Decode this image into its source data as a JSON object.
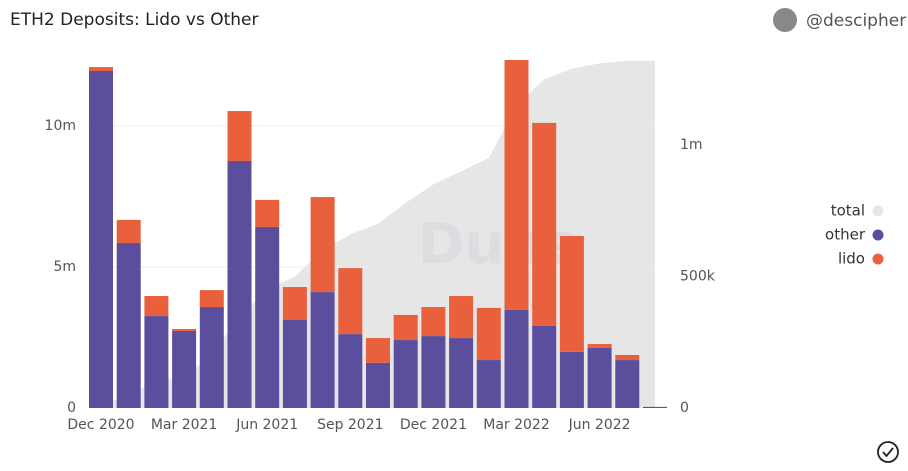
{
  "chart_data": {
    "type": "bar",
    "title": "ETH2 Deposits: Lido vs Other",
    "author": "@descipher",
    "watermark": "Dune",
    "stacked": true,
    "categories": [
      "Dec 2020",
      null,
      null,
      "Mar 2021",
      null,
      null,
      "Jun 2021",
      null,
      null,
      "Sep 2021",
      null,
      null,
      "Dec 2021",
      null,
      null,
      "Mar 2022",
      null,
      null,
      "Jun 2022",
      null,
      null
    ],
    "series": [
      {
        "name": "total",
        "color": "#e6e6e6",
        "type": "area",
        "axis": "y2",
        "values": [
          10000,
          50000,
          100000,
          120000,
          200000,
          350000,
          450000,
          500000,
          600000,
          660000,
          700000,
          780000,
          850000,
          900000,
          950000,
          1150000,
          1250000,
          1290000,
          1310000,
          1320000,
          1320000
        ]
      },
      {
        "name": "other",
        "color": "#5b4f9d",
        "values": [
          11950000,
          5850000,
          3260000,
          2730000,
          3580000,
          8760000,
          6420000,
          3120000,
          4110000,
          2620000,
          1600000,
          2410000,
          2550000,
          2480000,
          1700000,
          3480000,
          2910000,
          1990000,
          2130000,
          1700000,
          40000
        ]
      },
      {
        "name": "lido",
        "color": "#e8603c",
        "values": [
          140000,
          820000,
          710000,
          70000,
          600000,
          1770000,
          960000,
          1170000,
          3370000,
          2340000,
          880000,
          890000,
          1030000,
          1490000,
          1850000,
          8860000,
          7200000,
          4110000,
          140000,
          180000,
          0
        ]
      }
    ],
    "ylim": [
      0,
      12340000
    ],
    "yticks": [
      0,
      {
        "value": 5000000,
        "label": "5m"
      },
      {
        "value": 10000000,
        "label": "10m"
      }
    ],
    "y2lim": [
      0,
      1323000
    ],
    "y2ticks": [
      0,
      {
        "value": 500000,
        "label": "500k"
      },
      {
        "value": 1000000,
        "label": "1m"
      }
    ],
    "grid": true,
    "legend": "right"
  }
}
